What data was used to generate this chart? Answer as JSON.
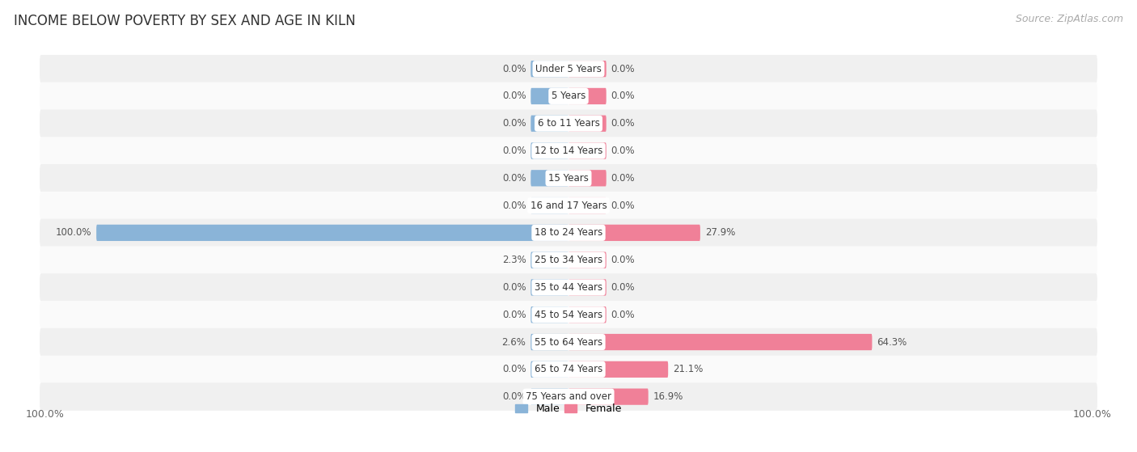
{
  "title": "INCOME BELOW POVERTY BY SEX AND AGE IN KILN",
  "source": "Source: ZipAtlas.com",
  "categories": [
    "Under 5 Years",
    "5 Years",
    "6 to 11 Years",
    "12 to 14 Years",
    "15 Years",
    "16 and 17 Years",
    "18 to 24 Years",
    "25 to 34 Years",
    "35 to 44 Years",
    "45 to 54 Years",
    "55 to 64 Years",
    "65 to 74 Years",
    "75 Years and over"
  ],
  "male_values": [
    0.0,
    0.0,
    0.0,
    0.0,
    0.0,
    0.0,
    100.0,
    2.3,
    0.0,
    0.0,
    2.6,
    0.0,
    0.0
  ],
  "female_values": [
    0.0,
    0.0,
    0.0,
    0.0,
    0.0,
    0.0,
    27.9,
    0.0,
    0.0,
    0.0,
    64.3,
    21.1,
    16.9
  ],
  "male_color": "#8ab4d8",
  "female_color": "#f08098",
  "male_label": "Male",
  "female_label": "Female",
  "max_value": 100.0,
  "min_bar_width": 8.0,
  "title_fontsize": 12,
  "label_fontsize": 8.5,
  "value_fontsize": 8.5,
  "source_fontsize": 9
}
